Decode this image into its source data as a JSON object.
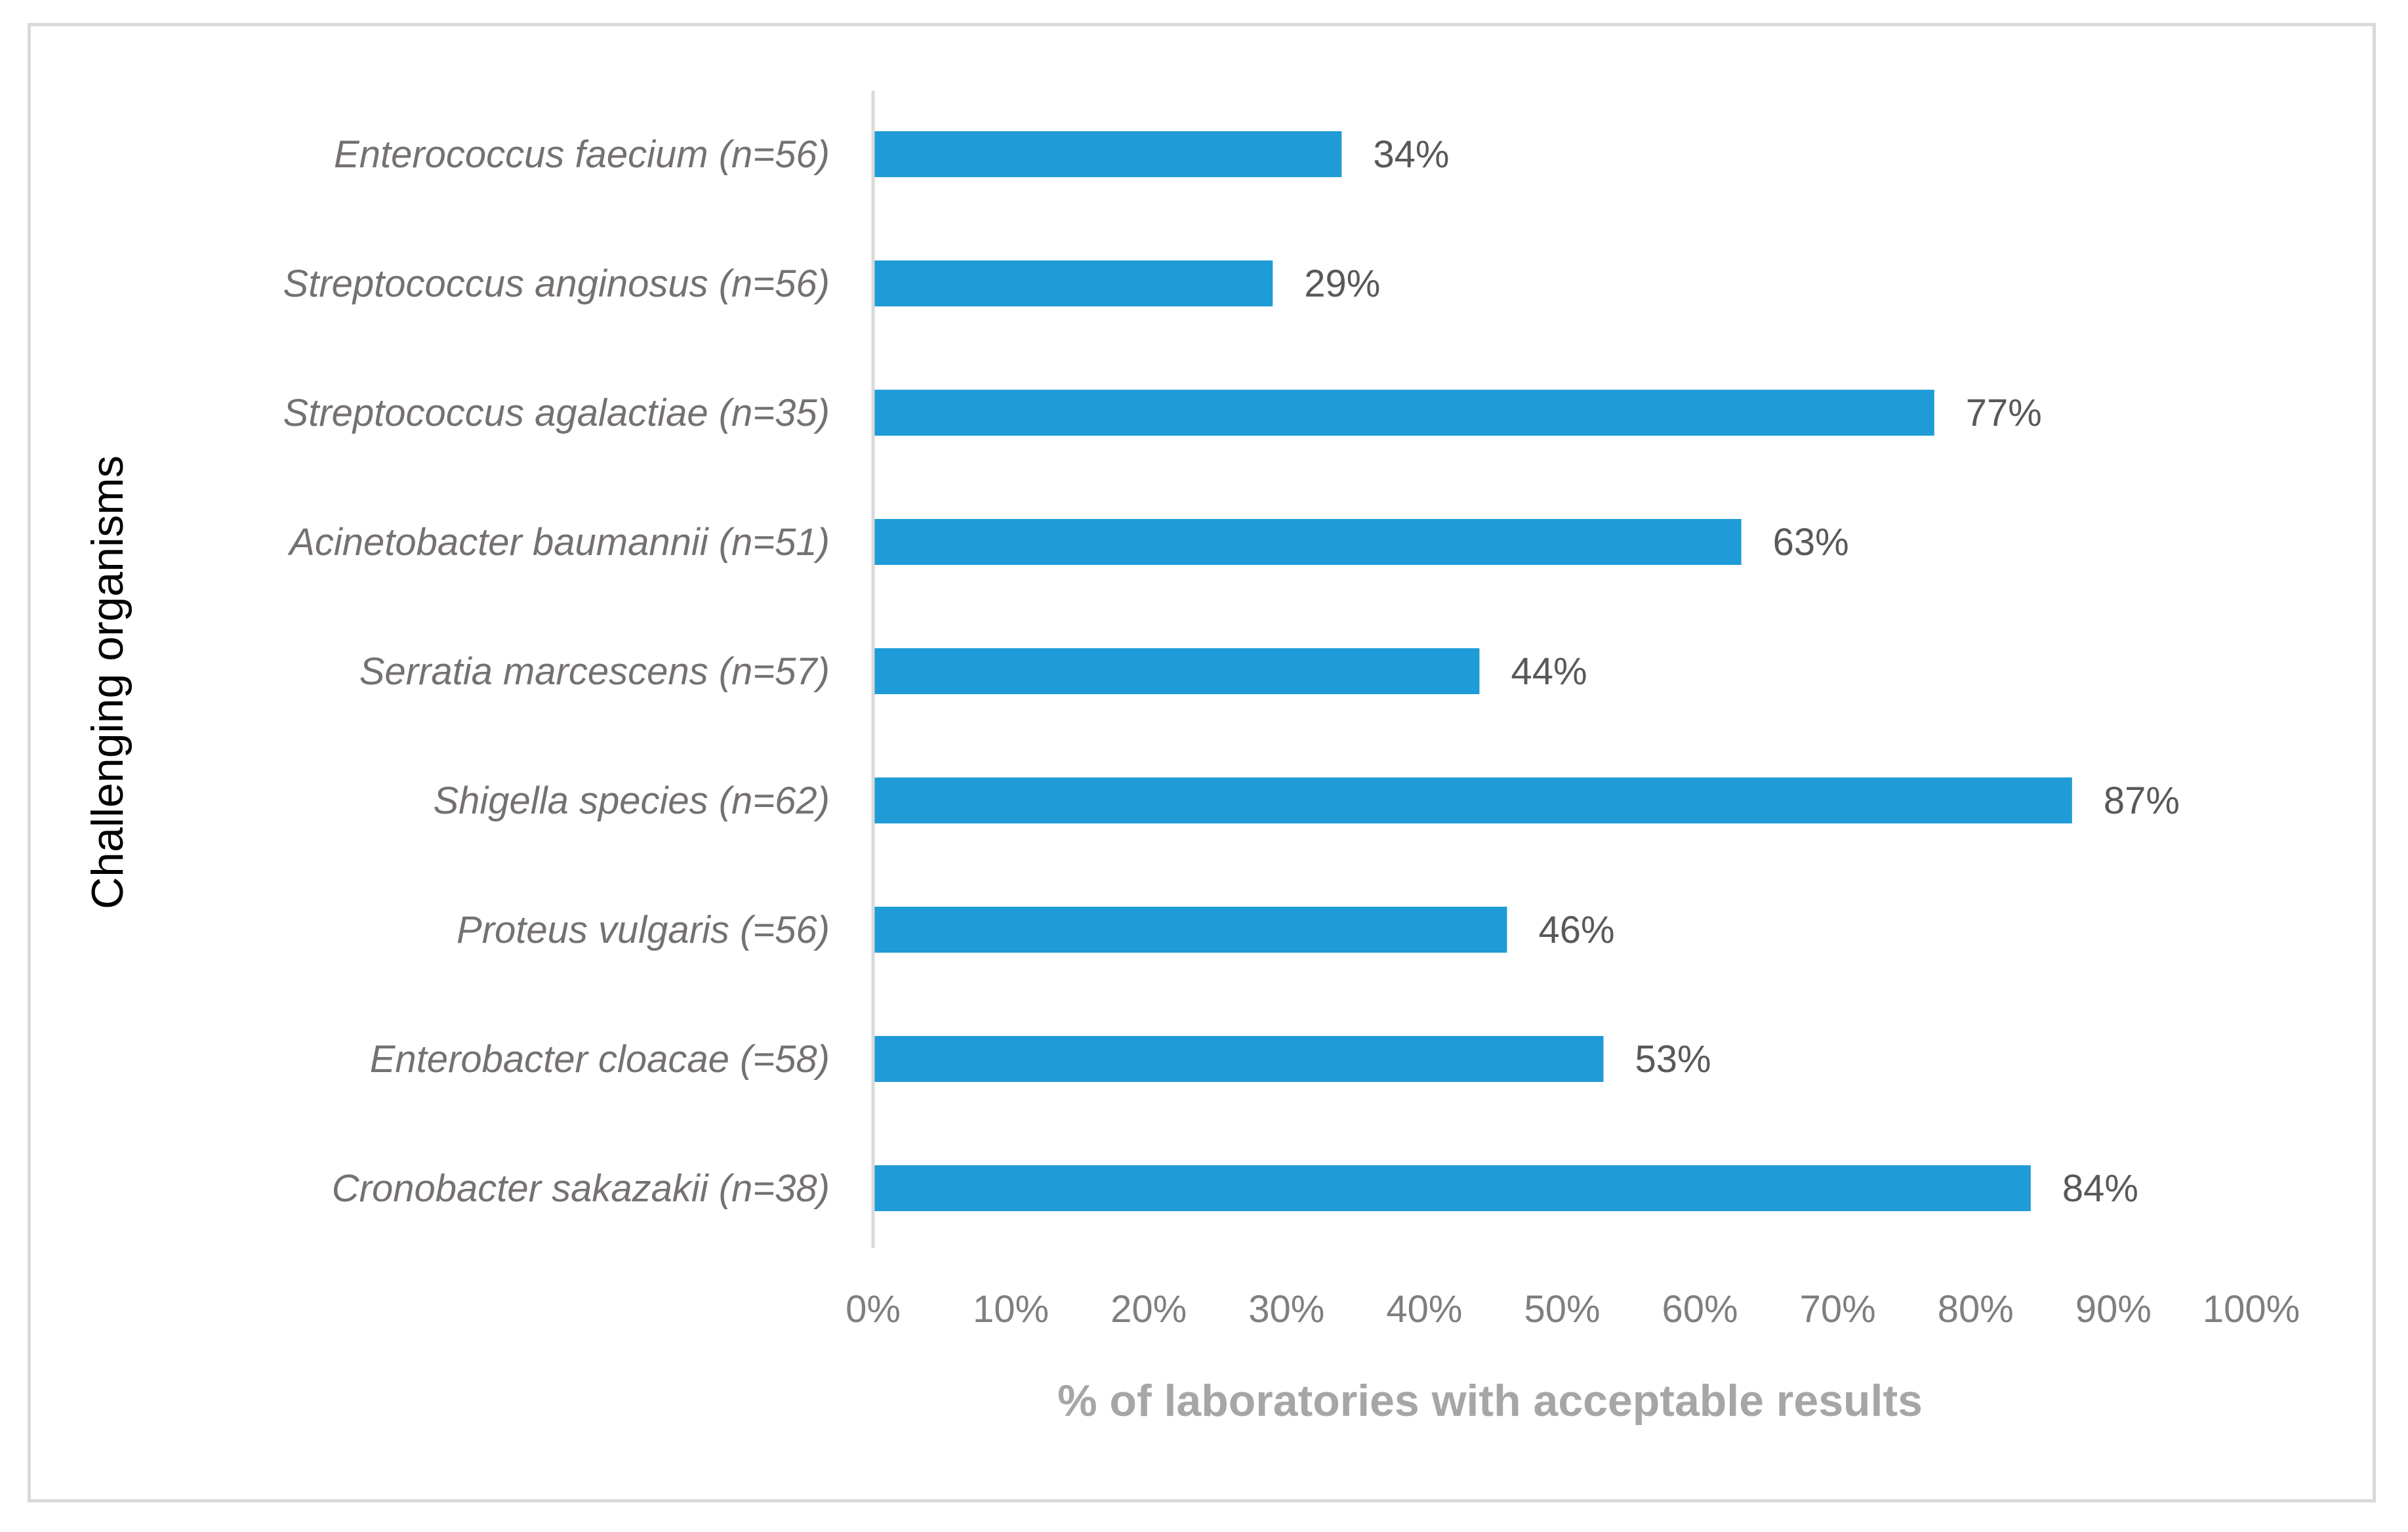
{
  "chart_data": {
    "type": "bar",
    "orientation": "horizontal",
    "categories": [
      "Enterococcus faecium (n=56)",
      "Streptococcus anginosus (n=56)",
      "Streptococcus agalactiae (n=35)",
      "Acinetobacter baumannii (n=51)",
      "Serratia marcescens (n=57)",
      "Shigella species (n=62)",
      "Proteus vulgaris (=56)",
      "Enterobacter cloacae (=58)",
      "Cronobacter sakazakii (n=38)"
    ],
    "values": [
      34,
      29,
      77,
      63,
      44,
      87,
      46,
      53,
      84
    ],
    "data_labels": [
      "34%",
      "29%",
      "77%",
      "63%",
      "44%",
      "87%",
      "46%",
      "53%",
      "84%"
    ],
    "xlabel": "% of laboratories with acceptable results",
    "ylabel": "Challenging organisms",
    "xlim": [
      0,
      100
    ],
    "xticks": [
      "0%",
      "10%",
      "20%",
      "30%",
      "40%",
      "50%",
      "60%",
      "70%",
      "80%",
      "90%",
      "100%"
    ],
    "grid": false,
    "legend": "none"
  },
  "colors": {
    "bar": "#1f9bd7",
    "axis_line": "#d9d9d9",
    "frame": "#d9d9d9"
  }
}
